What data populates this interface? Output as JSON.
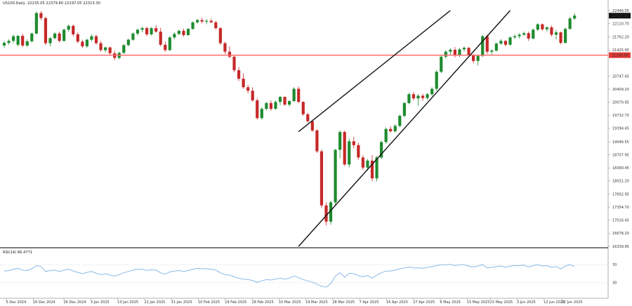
{
  "header": {
    "symbol": "US100.Daily",
    "ohlc": "22235.05 22379.80 22197.05 22313.30"
  },
  "rsi_header": "RSI(14) 66.4771",
  "colors": {
    "bull": "#1f8b2f",
    "bear": "#c62828",
    "level_line": "#ff6b6b",
    "rsi_line": "#8ab8e6",
    "channel": "#111111",
    "price_badge": "#111111",
    "level_badge": "#e53935"
  },
  "chart_data": [
    {
      "type": "candlestick",
      "symbol": "US100",
      "timeframe": "Daily",
      "x_tick_labels": [
        "5 Dec 2024",
        "16 Dec 2024",
        "26 Dec 2024",
        "3 Jan 2025",
        "13 Jan 2025",
        "22 Jan 2025",
        "31 Jan 2025",
        "10 Feb 2025",
        "19 Feb 2025",
        "28 Feb 2025",
        "10 Mar 2025",
        "19 Mar 2025",
        "28 Mar 2025",
        "7 Apr 2025",
        "16 Apr 2025",
        "27 Apr 2025",
        "6 May 2025",
        "15 May 2025",
        "23 May 2025",
        "3 Jun 2025",
        "12 Jun 2025",
        "22 Jun 2025"
      ],
      "y_tick_labels": [
        "22446.05",
        "22110.70",
        "21762.20",
        "21425.95",
        "20747.45",
        "20409.20",
        "20070.95",
        "19732.70",
        "19394.45",
        "19046.55",
        "18707.95",
        "18369.45",
        "18031.20",
        "17692.95",
        "17354.70",
        "17016.45",
        "16678.20",
        "16339.95"
      ],
      "y_range": [
        16339.95,
        22446.05
      ],
      "last_price_label": "22313.30",
      "horizontal_level_label": "21290.00",
      "horizontal_level": 21290,
      "channel": {
        "upper": [
          {
            "index": 64,
            "value": 19310
          },
          {
            "index": 97,
            "value": 22446
          }
        ],
        "lower": [
          {
            "index": 64,
            "value": 16339.95
          },
          {
            "index": 110,
            "value": 22446
          }
        ]
      },
      "candles": [
        [
          21540,
          21660,
          21480,
          21610
        ],
        [
          21610,
          21700,
          21560,
          21660
        ],
        [
          21660,
          21820,
          21600,
          21780
        ],
        [
          21560,
          21810,
          21520,
          21790
        ],
        [
          21790,
          21850,
          21500,
          21540
        ],
        [
          21540,
          21700,
          21500,
          21650
        ],
        [
          21650,
          21880,
          21620,
          21850
        ],
        [
          21850,
          22420,
          21830,
          22380
        ],
        [
          22380,
          22430,
          22200,
          22250
        ],
        [
          22250,
          22290,
          21550,
          21600
        ],
        [
          21600,
          21760,
          21520,
          21730
        ],
        [
          21730,
          21880,
          21700,
          21850
        ],
        [
          21850,
          21900,
          21620,
          21660
        ],
        [
          21660,
          21980,
          21640,
          21950
        ],
        [
          21950,
          22080,
          21900,
          22050
        ],
        [
          22050,
          22080,
          21780,
          21830
        ],
        [
          21830,
          21880,
          21600,
          21640
        ],
        [
          21640,
          21690,
          21470,
          21520
        ],
        [
          21520,
          21720,
          21480,
          21690
        ],
        [
          21690,
          21830,
          21640,
          21780
        ],
        [
          21780,
          21820,
          21560,
          21600
        ],
        [
          21600,
          21660,
          21380,
          21420
        ],
        [
          21420,
          21520,
          21360,
          21490
        ],
        [
          21490,
          21510,
          21300,
          21340
        ],
        [
          21340,
          21410,
          21160,
          21220
        ],
        [
          21220,
          21380,
          21180,
          21350
        ],
        [
          21350,
          21580,
          21320,
          21550
        ],
        [
          21550,
          21720,
          21520,
          21690
        ],
        [
          21690,
          21880,
          21660,
          21850
        ],
        [
          21850,
          21980,
          21800,
          21950
        ],
        [
          21950,
          22030,
          21880,
          21990
        ],
        [
          21990,
          22030,
          21780,
          21830
        ],
        [
          21830,
          22020,
          21800,
          21990
        ],
        [
          21990,
          22070,
          21870,
          21900
        ],
        [
          21900,
          22000,
          21520,
          21560
        ],
        [
          21560,
          21640,
          21380,
          21420
        ],
        [
          21420,
          21780,
          21400,
          21750
        ],
        [
          21750,
          21880,
          21700,
          21840
        ],
        [
          21840,
          21950,
          21810,
          21920
        ],
        [
          21920,
          21980,
          21770,
          21810
        ],
        [
          21810,
          22000,
          21790,
          21970
        ],
        [
          21970,
          22160,
          21950,
          22140
        ],
        [
          22140,
          22230,
          22110,
          22200
        ],
        [
          22200,
          22260,
          22110,
          22160
        ],
        [
          22160,
          22220,
          22090,
          22180
        ],
        [
          22180,
          22240,
          22120,
          22140
        ],
        [
          22140,
          22180,
          21950,
          21990
        ],
        [
          21990,
          22020,
          21560,
          21600
        ],
        [
          21600,
          21640,
          21320,
          21380
        ],
        [
          21380,
          21520,
          21210,
          21250
        ],
        [
          21250,
          21300,
          20850,
          20900
        ],
        [
          20900,
          20980,
          20620,
          20680
        ],
        [
          20680,
          20820,
          20420,
          20460
        ],
        [
          20460,
          20520,
          20300,
          20370
        ],
        [
          20370,
          20460,
          20080,
          20120
        ],
        [
          20120,
          20180,
          19620,
          19660
        ],
        [
          19660,
          19940,
          19620,
          19900
        ],
        [
          19900,
          20080,
          19860,
          20050
        ],
        [
          20050,
          20120,
          19850,
          19900
        ],
        [
          19900,
          20120,
          19880,
          20080
        ],
        [
          20080,
          20240,
          20000,
          20210
        ],
        [
          20210,
          20220,
          19980,
          20010
        ],
        [
          20010,
          20130,
          19960,
          20100
        ],
        [
          20100,
          20460,
          20080,
          20420
        ],
        [
          20420,
          20480,
          20050,
          20080
        ],
        [
          20080,
          20100,
          19720,
          19760
        ],
        [
          19760,
          19800,
          19540,
          19580
        ],
        [
          19580,
          19620,
          19300,
          19340
        ],
        [
          19340,
          19380,
          18760,
          18800
        ],
        [
          18800,
          18850,
          17340,
          17400
        ],
        [
          17400,
          17480,
          16880,
          16980
        ],
        [
          16980,
          17520,
          16900,
          17480
        ],
        [
          17480,
          18860,
          17420,
          18840
        ],
        [
          18840,
          19340,
          18620,
          19300
        ],
        [
          19300,
          19340,
          18420,
          18460
        ],
        [
          18460,
          19140,
          18380,
          19060
        ],
        [
          19060,
          19180,
          18880,
          18960
        ],
        [
          18960,
          19020,
          18580,
          18640
        ],
        [
          18640,
          18700,
          18320,
          18380
        ],
        [
          18380,
          18600,
          18300,
          18560
        ],
        [
          18560,
          18700,
          18020,
          18100
        ],
        [
          18100,
          18680,
          18020,
          18640
        ],
        [
          18640,
          19080,
          18600,
          19040
        ],
        [
          19040,
          19420,
          19000,
          19380
        ],
        [
          19380,
          19450,
          19280,
          19320
        ],
        [
          19320,
          19500,
          19280,
          19460
        ],
        [
          19460,
          19760,
          19420,
          19720
        ],
        [
          19720,
          20080,
          19680,
          20050
        ],
        [
          20050,
          20320,
          20020,
          20280
        ],
        [
          20280,
          20340,
          20120,
          20170
        ],
        [
          20170,
          20280,
          19980,
          20240
        ],
        [
          20240,
          20290,
          20110,
          20180
        ],
        [
          20180,
          20310,
          20140,
          20280
        ],
        [
          20280,
          20460,
          20230,
          20420
        ],
        [
          20420,
          20900,
          20380,
          20860
        ],
        [
          20860,
          21290,
          20820,
          21250
        ],
        [
          21250,
          21420,
          21200,
          21380
        ],
        [
          21380,
          21470,
          21300,
          21430
        ],
        [
          21430,
          21500,
          21230,
          21280
        ],
        [
          21280,
          21480,
          21240,
          21440
        ],
        [
          21440,
          21520,
          21380,
          21480
        ],
        [
          21480,
          21500,
          21250,
          21290
        ],
        [
          21290,
          21310,
          21080,
          21140
        ],
        [
          21140,
          21300,
          21020,
          21270
        ],
        [
          21270,
          21820,
          21240,
          21780
        ],
        [
          21780,
          21820,
          21320,
          21380
        ],
        [
          21380,
          21440,
          21300,
          21410
        ],
        [
          21410,
          21620,
          21380,
          21590
        ],
        [
          21590,
          21700,
          21560,
          21660
        ],
        [
          21660,
          21680,
          21520,
          21560
        ],
        [
          21560,
          21780,
          21540,
          21750
        ],
        [
          21750,
          21830,
          21710,
          21780
        ],
        [
          21780,
          21860,
          21720,
          21820
        ],
        [
          21820,
          21900,
          21790,
          21860
        ],
        [
          21860,
          21900,
          21660,
          21720
        ],
        [
          21720,
          21980,
          21700,
          21950
        ],
        [
          21950,
          22120,
          21920,
          22090
        ],
        [
          22090,
          22110,
          21920,
          21960
        ],
        [
          21960,
          22040,
          21900,
          22010
        ],
        [
          22010,
          22060,
          21780,
          21820
        ],
        [
          21820,
          21940,
          21700,
          21880
        ],
        [
          21880,
          21900,
          21570,
          21610
        ],
        [
          21610,
          22010,
          21590,
          21970
        ],
        [
          21970,
          22280,
          21950,
          22240
        ],
        [
          22240,
          22380,
          22200,
          22313.3
        ]
      ],
      "rsi": {
        "name": "RSI(14)",
        "last_value": 66.4771,
        "range": [
          0,
          100
        ],
        "levels": [
          70,
          30
        ],
        "tick_labels": [
          "70",
          "30"
        ],
        "values": [
          56,
          57,
          60,
          62,
          58,
          57,
          61,
          68,
          66,
          55,
          57,
          58,
          55,
          58,
          60,
          56,
          53,
          50,
          53,
          55,
          51,
          48,
          50,
          47,
          45,
          48,
          52,
          55,
          58,
          60,
          60,
          57,
          59,
          58,
          52,
          49,
          54,
          56,
          57,
          55,
          57,
          60,
          62,
          61,
          61,
          60,
          58,
          52,
          48,
          47,
          43,
          40,
          38,
          37,
          35,
          31,
          34,
          37,
          36,
          38,
          40,
          38,
          40,
          45,
          41,
          37,
          34,
          31,
          27,
          22,
          20,
          28,
          45,
          52,
          42,
          51,
          50,
          46,
          43,
          46,
          40,
          47,
          52,
          56,
          56,
          58,
          61,
          63,
          65,
          63,
          63,
          62,
          64,
          66,
          68,
          70,
          70,
          71,
          68,
          70,
          70,
          67,
          65,
          67,
          70,
          63,
          64,
          66,
          67,
          64,
          67,
          68,
          68,
          69,
          65,
          68,
          70,
          67,
          68,
          64,
          66,
          61,
          67,
          70,
          66.48
        ]
      }
    }
  ]
}
